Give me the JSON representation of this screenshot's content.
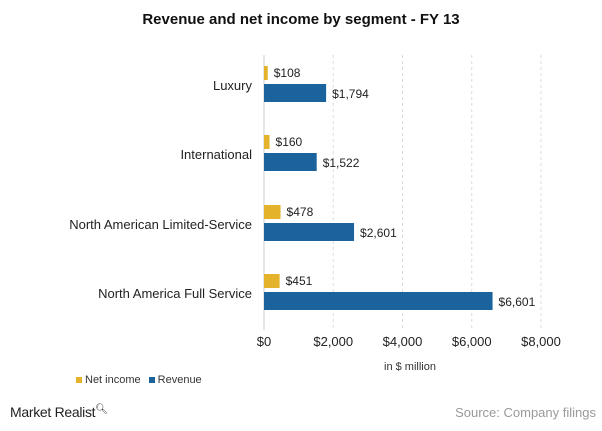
{
  "chart_data": {
    "type": "bar",
    "orientation": "horizontal",
    "title": "Revenue and net income by segment - FY 13",
    "categories": [
      "Luxury",
      "International",
      "North American Limited-Service",
      "North America Full Service"
    ],
    "series": [
      {
        "name": "Net income",
        "color": "#E5B22C",
        "values": [
          108,
          160,
          478,
          451
        ],
        "labels": [
          "$108",
          "$160",
          "$478",
          "$451"
        ]
      },
      {
        "name": "Revenue",
        "color": "#1A639C",
        "values": [
          1794,
          1522,
          2601,
          6601
        ],
        "labels": [
          "$1,794",
          "$1,522",
          "$2,601",
          "$6,601"
        ]
      }
    ],
    "xlim": [
      0,
      8000
    ],
    "xticks": [
      0,
      2000,
      4000,
      6000,
      8000
    ],
    "xtick_labels": [
      "$0",
      "$2,000",
      "$4,000",
      "$6,000",
      "$8,000"
    ],
    "xlabel": "in $ million",
    "grid": "vertical dashed",
    "legend_placement": "bottom-left"
  },
  "footer": {
    "logo": "Market Realist",
    "source": "Source: Company filings"
  }
}
